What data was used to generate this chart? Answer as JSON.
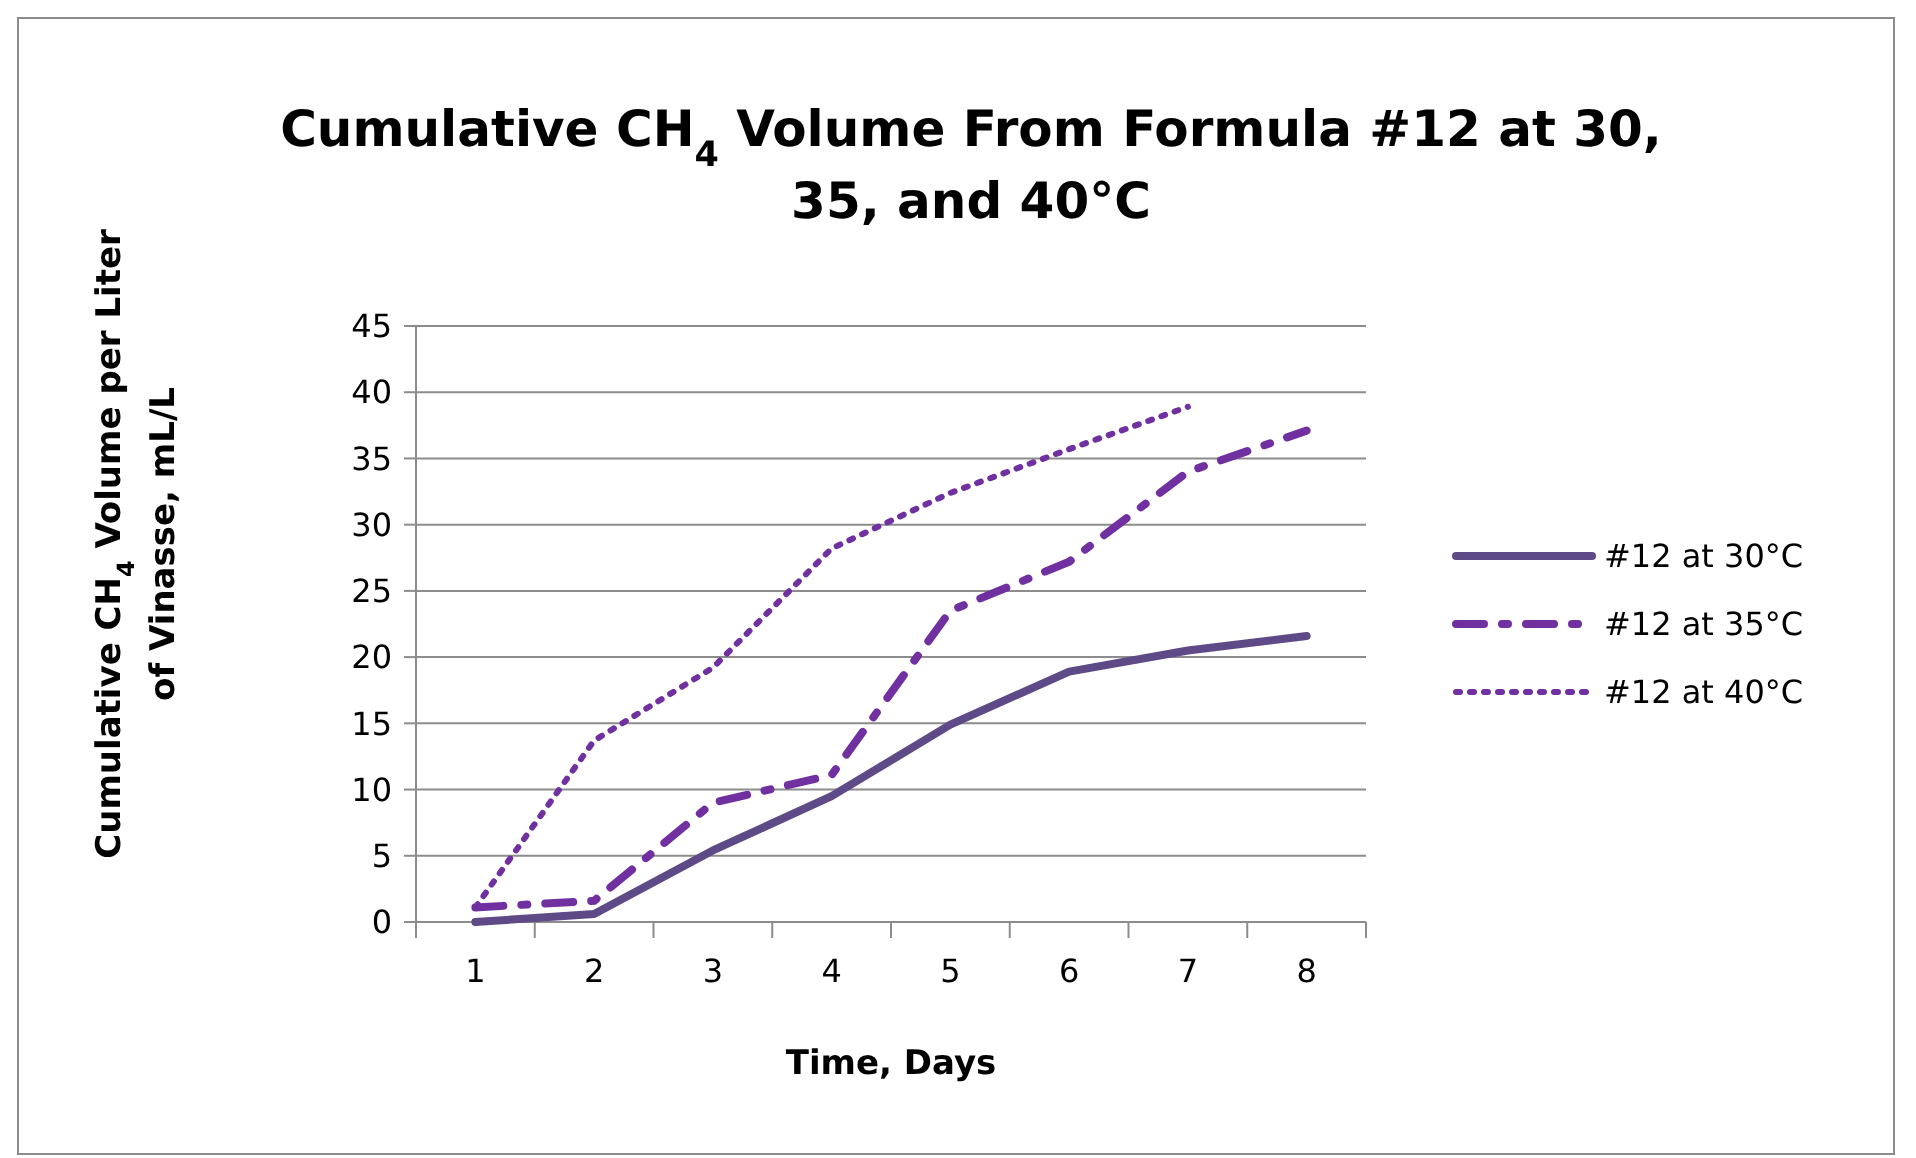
{
  "chart_data": {
    "type": "line",
    "title": "Cumulative CH$_{4}$ Volume From Formula #12 at 30, 35, and 40°C",
    "xlabel": "Time, Days",
    "ylabel": "Cumulative CH$_{4}$ Volume per Liter of Vinasse, mL/L",
    "categories": [
      "1",
      "2",
      "3",
      "4",
      "5",
      "6",
      "7",
      "8"
    ],
    "series": [
      {
        "name": "#12 at 30°C",
        "color": "#5e4a87",
        "line_style": "solid",
        "values": [
          0,
          0.6,
          5.4,
          9.5,
          14.9,
          18.9,
          20.5,
          21.6
        ]
      },
      {
        "name": "#12 at 35°C",
        "color": "#7030a0",
        "line_style": "dashdot",
        "values": [
          1.1,
          1.6,
          9,
          11.1,
          23.5,
          27.2,
          34,
          37.1
        ]
      },
      {
        "name": "#12 at 40°C",
        "color": "#7030a0",
        "line_style": "dotted",
        "values": [
          1.1,
          13.7,
          19.2,
          28.2,
          32.4,
          35.7,
          38.9,
          null
        ]
      }
    ],
    "ylim": [
      0,
      45
    ],
    "yticks": [
      0,
      5,
      10,
      15,
      20,
      25,
      30,
      35,
      40,
      45
    ],
    "grid": "y",
    "legend": "right",
    "marker": "none"
  }
}
